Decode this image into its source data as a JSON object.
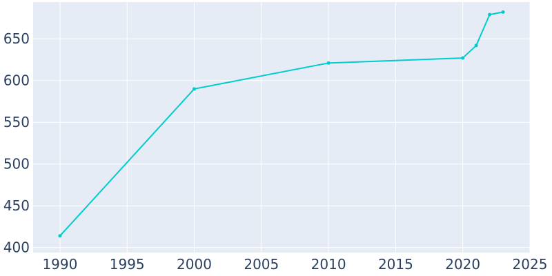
{
  "chart_data": {
    "type": "line",
    "title": "",
    "xlabel": "",
    "ylabel": "",
    "x": [
      1990,
      2000,
      2010,
      2020,
      2021,
      2022,
      2023
    ],
    "series": [
      {
        "values": [
          414,
          590,
          621,
          627,
          642,
          679,
          682
        ]
      }
    ],
    "xlim": [
      1988,
      2025
    ],
    "ylim": [
      394,
      694
    ],
    "x_ticks": [
      1990,
      1995,
      2000,
      2005,
      2010,
      2015,
      2020,
      2025
    ],
    "y_ticks": [
      400,
      450,
      500,
      550,
      600,
      650
    ],
    "grid": true,
    "legend": "none",
    "colors": {
      "plot_background": "#E5ECF6",
      "grid": "#ffffff",
      "line": "#00CCCC",
      "tick_text": "#2a3f5f"
    }
  }
}
